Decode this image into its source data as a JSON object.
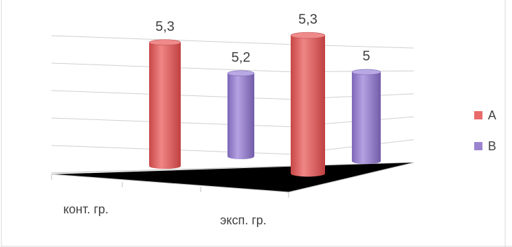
{
  "chart_data": {
    "type": "bar",
    "categories": [
      "конт. гр.",
      "эксп. гр."
    ],
    "series": [
      {
        "name": "A",
        "values": [
          5.3,
          5.3
        ],
        "labels": [
          "5,3",
          "5,3"
        ]
      },
      {
        "name": "B",
        "values": [
          5.2,
          5.0
        ],
        "labels": [
          "5,2",
          "5"
        ]
      }
    ],
    "title": "",
    "xlabel": "",
    "ylabel": "",
    "ylim": [
      0,
      6
    ],
    "grid": true,
    "legend_position": "right",
    "colors": {
      "A": "#e86a6a",
      "B": "#9b84cf"
    }
  }
}
